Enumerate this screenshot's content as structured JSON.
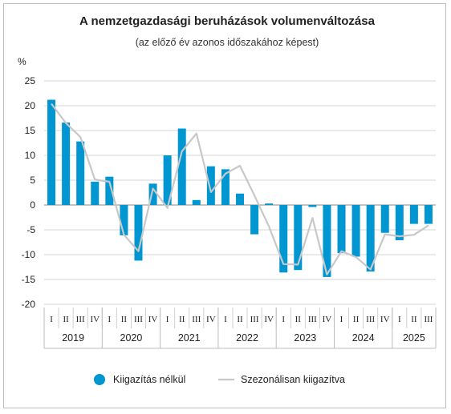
{
  "chart_data": {
    "type": "bar",
    "title": "A nemzetgazdasági beruházások volumenváltozása",
    "subtitle": "(az előző év azonos időszakához képest)",
    "ylabel": "%",
    "ylim": [
      -20,
      25
    ],
    "yticks": [
      25,
      20,
      15,
      10,
      5,
      0,
      -5,
      -10,
      -15,
      -20
    ],
    "grid": true,
    "legend_position": "bottom",
    "categories": [
      "I",
      "II",
      "III",
      "IV",
      "I",
      "II",
      "III",
      "IV",
      "I",
      "II",
      "III",
      "IV",
      "I",
      "II",
      "III",
      "IV",
      "I",
      "II",
      "III",
      "IV",
      "I",
      "II",
      "III",
      "IV",
      "I",
      "II",
      "III"
    ],
    "years": [
      {
        "label": "2019",
        "quarters": 4
      },
      {
        "label": "2020",
        "quarters": 4
      },
      {
        "label": "2021",
        "quarters": 4
      },
      {
        "label": "2022",
        "quarters": 4
      },
      {
        "label": "2023",
        "quarters": 4
      },
      {
        "label": "2024",
        "quarters": 4
      },
      {
        "label": "2025",
        "quarters": 3
      }
    ],
    "series": [
      {
        "name": "Kiigazítás nélkül",
        "type": "bar",
        "color": "#0096d1",
        "values": [
          21.2,
          16.6,
          12.8,
          4.7,
          5.7,
          -6.1,
          -11.2,
          4.3,
          10.0,
          15.4,
          1.0,
          7.8,
          7.2,
          2.3,
          -5.9,
          0.3,
          -13.6,
          -13.1,
          -0.4,
          -14.5,
          -9.7,
          -10.4,
          -13.4,
          -5.6,
          -7.1,
          -3.8,
          -3.8
        ]
      },
      {
        "name": "Szezonálisan kiigazítva",
        "type": "line",
        "color": "#c8c8c8",
        "values": [
          20.4,
          16.5,
          13.7,
          5.1,
          4.7,
          -6.0,
          -9.3,
          3.3,
          -0.6,
          10.8,
          14.4,
          2.6,
          6.3,
          7.9,
          1.9,
          -4.3,
          -11.9,
          -12.0,
          -2.6,
          -14.0,
          -9.3,
          -10.5,
          -13.0,
          -5.9,
          -6.3,
          -6.0,
          -4.1
        ]
      }
    ]
  }
}
